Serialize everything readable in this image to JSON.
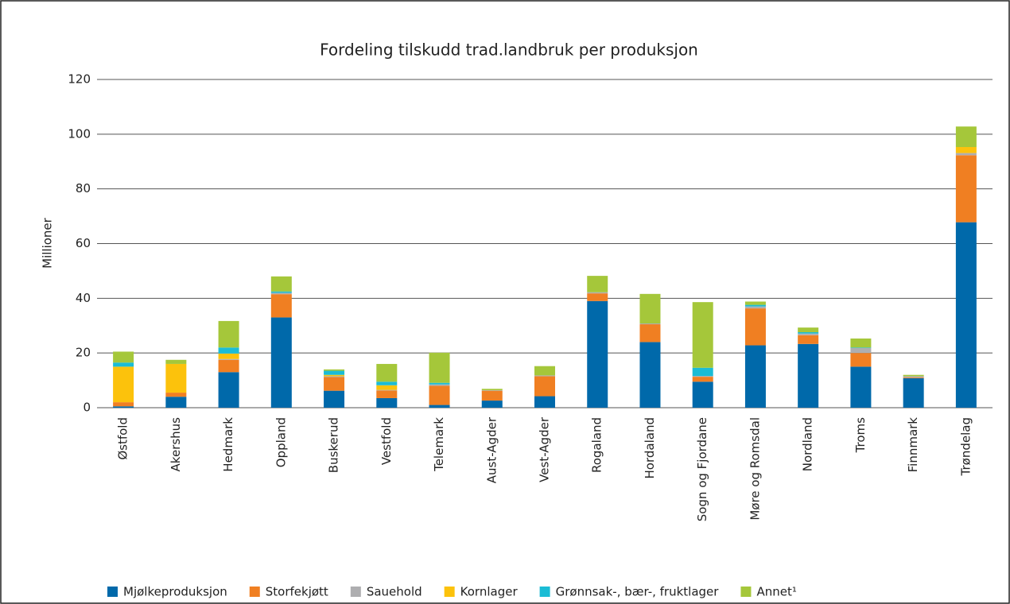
{
  "chart_data": {
    "type": "stacked_bar",
    "title": "Fordeling tilskudd trad.landbruk per produksjon",
    "y_label": "Millioner",
    "categories": [
      "Østfold",
      "Akershus",
      "Hedmark",
      "Oppland",
      "Buskerud",
      "Vestfold",
      "Telemark",
      "Aust-Agder",
      "Vest-Agder",
      "Rogaland",
      "Hordaland",
      "Sogn og Fjordane",
      "Møre og Romsdal",
      "Nordland",
      "Troms",
      "Finnmark",
      "Trøndelag"
    ],
    "series": [
      {
        "name": "Mjølkeproduksjon",
        "color": "#0069aa",
        "values": [
          0.5,
          4,
          13,
          33,
          6.2,
          3.5,
          1,
          2.6,
          4.2,
          39,
          24,
          9.5,
          22.8,
          23.3,
          15,
          10.8,
          67.8
        ]
      },
      {
        "name": "Storfekjøtt",
        "color": "#f07f22",
        "values": [
          1.5,
          1.5,
          4.5,
          8.5,
          5,
          2.8,
          7,
          3.6,
          7.3,
          2.8,
          6.5,
          1.8,
          13.5,
          3.2,
          5,
          0.3,
          24.5
        ]
      },
      {
        "name": "Sauehold",
        "color": "#aeaeb0",
        "values": [
          0,
          0,
          0.3,
          0.5,
          0.3,
          0.2,
          0.5,
          0.2,
          0.3,
          0.4,
          0.3,
          0.3,
          0.7,
          0.6,
          1.8,
          0.4,
          0.8
        ]
      },
      {
        "name": "Kornlager",
        "color": "#fcc20c",
        "values": [
          13,
          10.5,
          2,
          0,
          0.5,
          1.7,
          0,
          0,
          0,
          0,
          0,
          0,
          0,
          0,
          0,
          0,
          2.2
        ]
      },
      {
        "name": "Grønnsak-, bær-, fruktlager",
        "color": "#1bbcd5",
        "values": [
          1.5,
          0,
          2.2,
          0.5,
          1.5,
          1.3,
          0.6,
          0,
          0,
          0,
          0,
          3,
          0.6,
          0.5,
          0.2,
          0,
          0
        ]
      },
      {
        "name": "Annet¹",
        "color": "#a5c73a",
        "values": [
          4,
          1.5,
          9.7,
          5.5,
          0.5,
          6.5,
          11,
          0.5,
          3.4,
          6,
          10.8,
          24,
          1.2,
          1.7,
          3.3,
          0.5,
          7.5
        ]
      }
    ],
    "ylim": [
      0,
      120
    ],
    "yticks": [
      0,
      20,
      40,
      60,
      80,
      100,
      120
    ],
    "grid": true
  }
}
